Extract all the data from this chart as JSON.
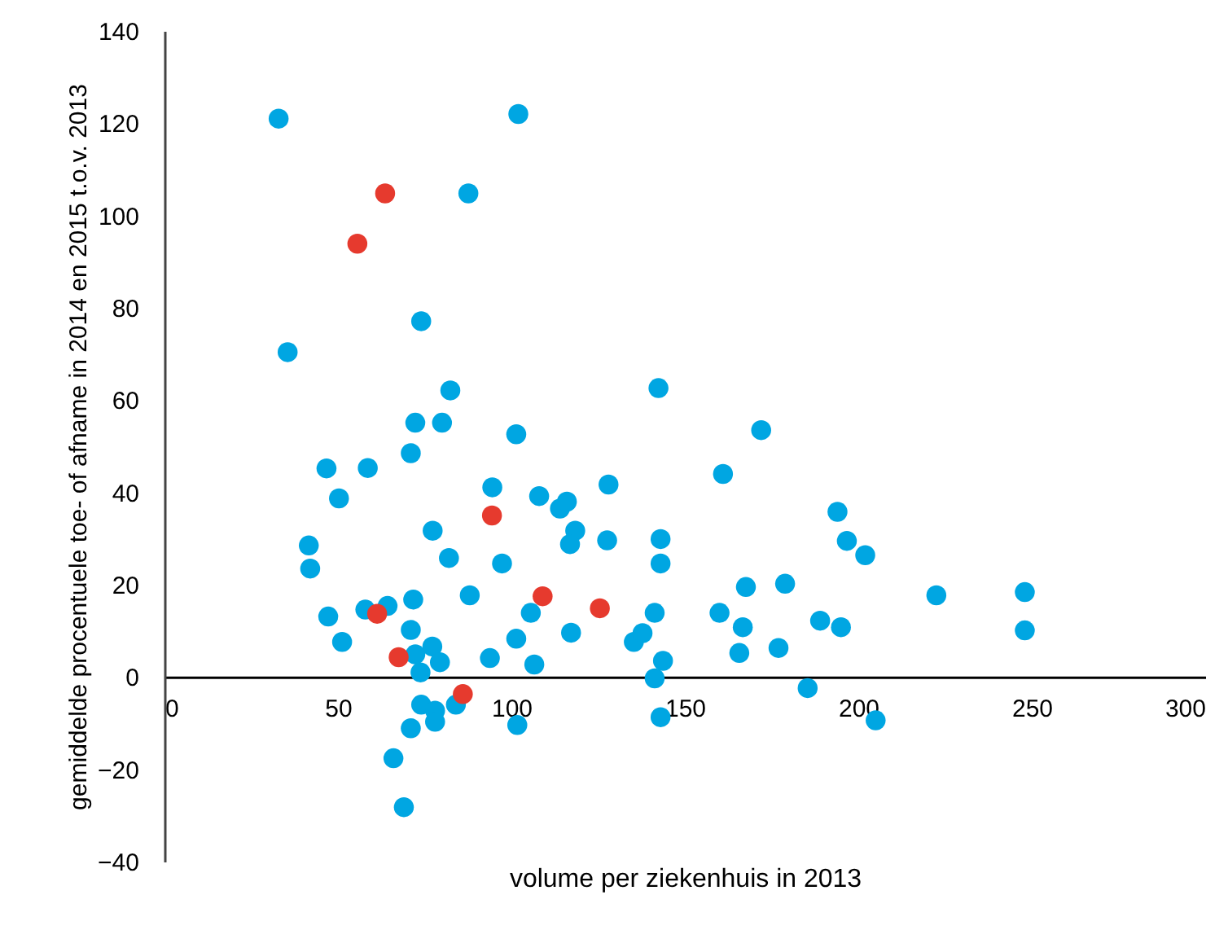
{
  "chart_data": {
    "type": "scatter",
    "xlabel": "volume per ziekenhuis in 2013",
    "ylabel": "gemiddelde procentuele toe- of afname in 2014 en 2015 t.o.v. 2013",
    "xlim": [
      0,
      300
    ],
    "xticks": [
      0,
      50,
      100,
      150,
      200,
      250,
      300
    ],
    "ylim": [
      -40,
      140
    ],
    "yticks": [
      -40,
      -20,
      0,
      20,
      40,
      60,
      80,
      100,
      120,
      140
    ],
    "grid": false,
    "legend": false,
    "marker": "circle",
    "series": [
      {
        "color": "#00a6e2",
        "x": [
          32.9,
          102,
          87.6,
          35.5,
          74,
          82.4,
          142.4,
          72.3,
          80,
          101.4,
          71,
          46.7,
          58.6,
          50.3,
          94.5,
          108,
          128,
          114,
          116,
          118.4,
          77.3,
          116.9,
          127.6,
          143,
          143,
          41.6,
          42,
          82,
          97.3,
          88,
          71.7,
          47.2,
          57.9,
          64.3,
          51.2,
          71,
          77.2,
          72.3,
          79.4,
          73.8,
          93.8,
          101.4,
          105.6,
          106.6,
          117.2,
          135.3,
          137.8,
          141.3,
          141.3,
          143.7,
          143,
          101.7,
          205,
          74,
          78,
          78,
          84,
          71,
          66,
          69,
          161,
          172,
          160,
          167.6,
          166.7,
          165.7,
          178.9,
          177,
          189,
          195,
          185.4,
          194,
          196.7,
          202,
          222.5,
          248,
          248
        ],
        "values": [
          121,
          122,
          104.8,
          70.4,
          77.1,
          62.1,
          62.6,
          55.1,
          55.1,
          52.6,
          48.5,
          45.2,
          45.3,
          38.7,
          41.1,
          39.2,
          41.7,
          36.5,
          38,
          31.7,
          31.7,
          28.8,
          29.6,
          29.9,
          24.6,
          28.5,
          23.5,
          25.8,
          24.6,
          17.7,
          16.8,
          13.1,
          14.6,
          15.4,
          7.6,
          10.2,
          6.6,
          4.9,
          3.2,
          1,
          4.1,
          8.3,
          13.9,
          2.7,
          9.6,
          7.6,
          9.5,
          13.9,
          -0.3,
          3.5,
          -8.7,
          -10.4,
          -9.4,
          -6,
          -7.3,
          -9.7,
          -6,
          -11.1,
          -17.6,
          -28.2,
          44,
          53.5,
          13.9,
          19.5,
          10.8,
          5.2,
          20.2,
          6.3,
          12.2,
          10.8,
          -2.4,
          35.8,
          29.5,
          26.4,
          17.7,
          18.4,
          10.1
        ]
      },
      {
        "color": "#e63a2e",
        "x": [
          63.6,
          55.6,
          94.4,
          109,
          125.5,
          61.3,
          67.5,
          86
        ],
        "values": [
          104.8,
          93.9,
          35,
          17.5,
          14.9,
          13.7,
          4.3,
          -3.7
        ]
      }
    ]
  }
}
